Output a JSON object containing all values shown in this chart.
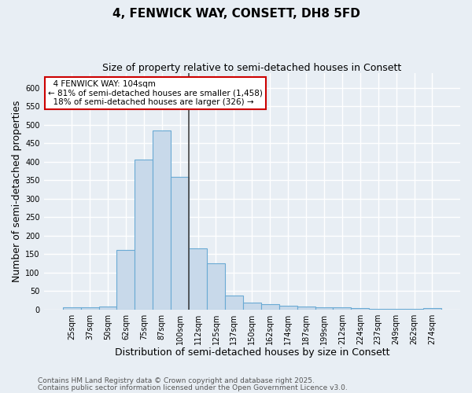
{
  "title": "4, FENWICK WAY, CONSETT, DH8 5FD",
  "subtitle": "Size of property relative to semi-detached houses in Consett",
  "xlabel": "Distribution of semi-detached houses by size in Consett",
  "ylabel": "Number of semi-detached properties",
  "categories": [
    "25sqm",
    "37sqm",
    "50sqm",
    "62sqm",
    "75sqm",
    "87sqm",
    "100sqm",
    "112sqm",
    "125sqm",
    "137sqm",
    "150sqm",
    "162sqm",
    "174sqm",
    "187sqm",
    "199sqm",
    "212sqm",
    "224sqm",
    "237sqm",
    "249sqm",
    "262sqm",
    "274sqm"
  ],
  "values": [
    5,
    6,
    8,
    160,
    405,
    485,
    360,
    165,
    125,
    37,
    18,
    15,
    10,
    8,
    5,
    5,
    4,
    2,
    1,
    2,
    3
  ],
  "bar_color": "#c8d9ea",
  "bar_edge_color": "#6aaad4",
  "ylim": [
    0,
    640
  ],
  "yticks": [
    0,
    50,
    100,
    150,
    200,
    250,
    300,
    350,
    400,
    450,
    500,
    550,
    600
  ],
  "property_label": "4 FENWICK WAY: 104sqm",
  "pct_smaller": 81,
  "count_smaller": 1458,
  "pct_larger": 18,
  "count_larger": 326,
  "vline_color": "#444444",
  "footnote_line1": "Contains HM Land Registry data © Crown copyright and database right 2025.",
  "footnote_line2": "Contains public sector information licensed under the Open Government Licence v3.0.",
  "background_color": "#e8eef4",
  "grid_color": "#ffffff",
  "title_fontsize": 11,
  "subtitle_fontsize": 9,
  "axis_label_fontsize": 9,
  "tick_fontsize": 7,
  "footnote_fontsize": 6.5,
  "annot_fontsize": 7.5
}
